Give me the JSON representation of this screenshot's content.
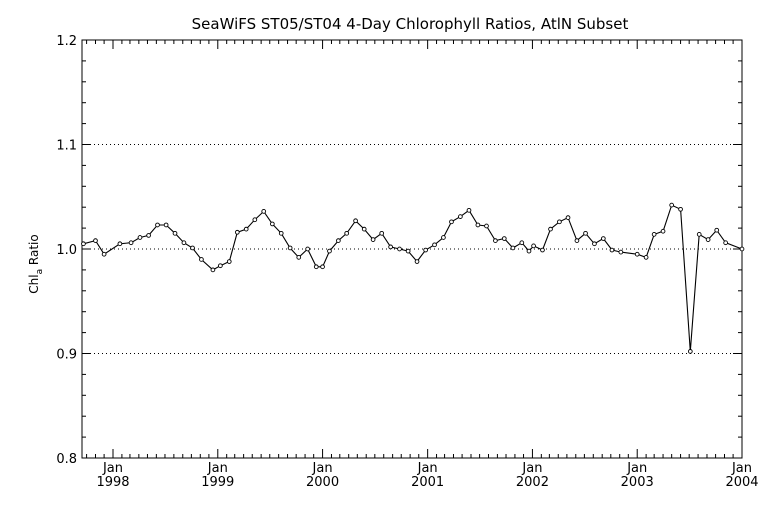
{
  "chart_data": {
    "type": "line",
    "title": "SeaWiFS ST05/ST04 4-Day Chlorophyll Ratios, AtlN Subset",
    "ylabel": "Chl",
    "ylabel_sub": "a",
    "ylabel_suffix": " Ratio",
    "xlabel": "",
    "xlim": [
      "1997-09-15",
      "2004-01-01"
    ],
    "ylim": [
      0.8,
      1.2
    ],
    "yticks": [
      0.8,
      0.9,
      1.0,
      1.1,
      1.2
    ],
    "ytick_labels": [
      "0.8",
      "0.9",
      "1.0",
      "1.1",
      "1.2"
    ],
    "ygrid": [
      0.9,
      1.0,
      1.1
    ],
    "grid_style": "dotted",
    "xticks": [
      {
        "date": "1998-01-01",
        "month": "Jan",
        "year": "1998"
      },
      {
        "date": "1999-01-01",
        "month": "Jan",
        "year": "1999"
      },
      {
        "date": "2000-01-01",
        "month": "Jan",
        "year": "2000"
      },
      {
        "date": "2001-01-01",
        "month": "Jan",
        "year": "2001"
      },
      {
        "date": "2002-01-01",
        "month": "Jan",
        "year": "2002"
      },
      {
        "date": "2003-01-01",
        "month": "Jan",
        "year": "2003"
      },
      {
        "date": "2004-01-01",
        "month": "Jan",
        "year": "2004"
      }
    ],
    "series": [
      {
        "x": [
          "1997-09-20",
          "1997-11-01",
          "1997-12-01",
          "1998-01-25",
          "1998-03-05",
          "1998-04-05",
          "1998-05-05",
          "1998-06-05",
          "1998-07-05",
          "1998-08-05",
          "1998-09-05",
          "1998-10-05",
          "1998-11-05",
          "1998-12-15",
          "1999-01-10",
          "1999-02-10",
          "1999-03-10",
          "1999-04-10",
          "1999-05-10",
          "1999-06-10",
          "1999-07-10",
          "1999-08-10",
          "1999-09-10",
          "1999-10-10",
          "1999-11-10",
          "1999-12-10",
          "2000-01-01",
          "2000-01-25",
          "2000-02-25",
          "2000-03-25",
          "2000-04-25",
          "2000-05-25",
          "2000-06-25",
          "2000-07-25",
          "2000-08-25",
          "2000-09-25",
          "2000-10-25",
          "2000-11-25",
          "2000-12-25",
          "2001-01-25",
          "2001-02-25",
          "2001-03-25",
          "2001-04-25",
          "2001-05-25",
          "2001-06-25",
          "2001-07-25",
          "2001-08-25",
          "2001-09-25",
          "2001-10-25",
          "2001-11-25",
          "2001-12-20",
          "2002-01-05",
          "2002-02-05",
          "2002-03-05",
          "2002-04-05",
          "2002-05-05",
          "2002-06-05",
          "2002-07-05",
          "2002-08-05",
          "2002-09-05",
          "2002-10-05",
          "2002-11-05",
          "2003-01-01",
          "2003-02-01",
          "2003-03-01",
          "2003-04-01",
          "2003-05-01",
          "2003-06-01",
          "2003-07-05",
          "2003-08-05",
          "2003-09-05",
          "2003-10-05",
          "2003-11-05",
          "2004-01-01"
        ],
        "values": [
          1.005,
          1.008,
          0.995,
          1.005,
          1.006,
          1.011,
          1.013,
          1.023,
          1.023,
          1.015,
          1.006,
          1.001,
          0.99,
          0.98,
          0.984,
          0.988,
          1.016,
          1.019,
          1.028,
          1.036,
          1.024,
          1.015,
          1.001,
          0.992,
          1.0,
          0.983,
          0.983,
          0.998,
          1.008,
          1.015,
          1.027,
          1.019,
          1.009,
          1.015,
          1.002,
          1.0,
          0.998,
          0.988,
          0.999,
          1.004,
          1.011,
          1.026,
          1.031,
          1.037,
          1.023,
          1.022,
          1.008,
          1.01,
          1.001,
          1.006,
          0.998,
          1.003,
          0.999,
          1.019,
          1.026,
          1.03,
          1.008,
          1.015,
          1.005,
          1.01,
          0.999,
          0.997,
          0.995,
          0.992,
          1.014,
          1.017,
          1.042,
          1.038,
          0.902,
          1.014,
          1.009,
          1.018,
          1.006,
          1.0
        ]
      }
    ]
  }
}
